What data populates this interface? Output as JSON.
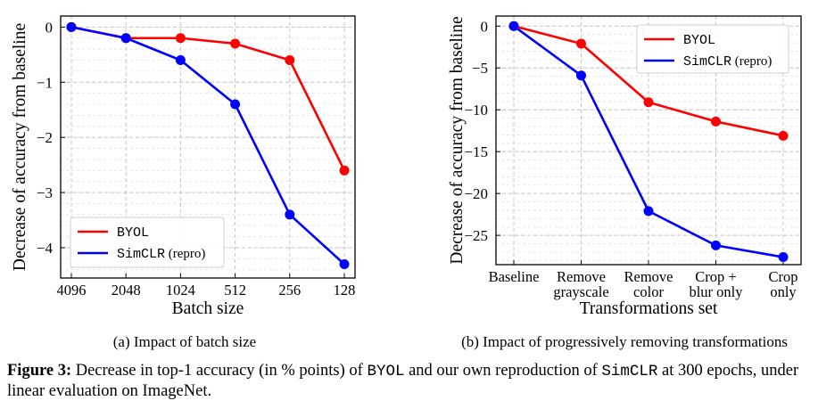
{
  "figure": {
    "number_label": "Figure 3:",
    "caption_parts": [
      {
        "text": " Decrease in top-1 accuracy (in % points) of ",
        "mono": false
      },
      {
        "text": "BYOL",
        "mono": true
      },
      {
        "text": " and our own reproduction of ",
        "mono": false
      },
      {
        "text": "SimCLR",
        "mono": true
      },
      {
        "text": " at 300 epochs, under linear evaluation on ImageNet.",
        "mono": false
      }
    ]
  },
  "chart_data": [
    {
      "type": "line",
      "subcaption": "(a) Impact of batch size",
      "title": "",
      "xlabel": "Batch size",
      "ylabel": "Decrease of accuracy from baseline",
      "categories": [
        "4096",
        "2048",
        "1024",
        "512",
        "256",
        "128"
      ],
      "yticks": [
        0,
        -1,
        -2,
        -3,
        -4
      ],
      "ytick_labels": [
        "0",
        "−1",
        "−2",
        "−3",
        "−4"
      ],
      "ylim": [
        -4.55,
        0.2
      ],
      "grid": true,
      "legend_position": "bottom-left",
      "series": [
        {
          "name": "BYOL",
          "name_mono": "BYOL",
          "name_rest": "",
          "color": "#ff0000",
          "values": [
            0,
            -0.2,
            -0.2,
            -0.3,
            -0.6,
            -2.6
          ]
        },
        {
          "name": "SimCLR (repro)",
          "name_mono": "SimCLR",
          "name_rest": " (repro)",
          "color": "#0000ff",
          "values": [
            0,
            -0.2,
            -0.6,
            -1.4,
            -3.4,
            -4.3
          ]
        }
      ]
    },
    {
      "type": "line",
      "subcaption": "(b) Impact of progressively removing transformations",
      "title": "",
      "xlabel": "Transformations set",
      "ylabel": "Decrease of accuracy from baseline",
      "categories": [
        "Baseline",
        "Remove grayscale",
        "Remove color",
        "Crop + blur only",
        "Crop only"
      ],
      "category_lines": [
        [
          "Baseline"
        ],
        [
          "Remove",
          "grayscale"
        ],
        [
          "Remove",
          "color"
        ],
        [
          "Crop +",
          "blur only"
        ],
        [
          "Crop",
          "only"
        ]
      ],
      "yticks": [
        0,
        -5,
        -10,
        -15,
        -20,
        -25
      ],
      "ytick_labels": [
        "0",
        "−5",
        "−10",
        "−15",
        "−20",
        "−25"
      ],
      "ylim": [
        -28.5,
        1.2
      ],
      "grid": true,
      "legend_position": "top-right",
      "series": [
        {
          "name": "BYOL",
          "name_mono": "BYOL",
          "name_rest": "",
          "color": "#ff0000",
          "values": [
            0,
            -2.1,
            -9.1,
            -11.4,
            -13.1
          ]
        },
        {
          "name": "SimCLR (repro)",
          "name_mono": "SimCLR",
          "name_rest": " (repro)",
          "color": "#0000ff",
          "values": [
            0,
            -5.9,
            -22.1,
            -26.2,
            -27.6
          ]
        }
      ]
    }
  ]
}
